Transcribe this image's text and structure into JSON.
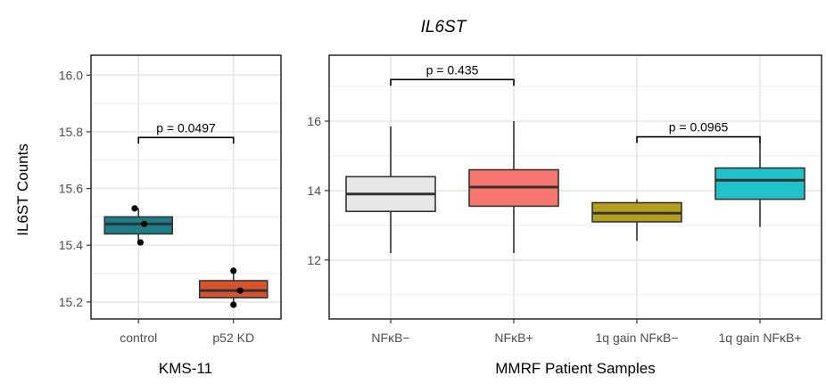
{
  "title": "IL6ST",
  "colors": {
    "control": "#1a7f8a",
    "p52kd": "#d9542b",
    "nfkb_minus": "#e8e8e8",
    "nfkb_plus": "#f8766d",
    "gain_minus": "#b5a01b",
    "gain_plus": "#1fc2c8",
    "grid": "#e6e6e6",
    "frame": "#333333",
    "box_stroke": "#333333"
  },
  "chart_data": [
    {
      "type": "box",
      "xlabel": "KMS-11",
      "ylabel": "IL6ST Counts",
      "ylim": [
        15.14,
        16.07
      ],
      "yticks": [
        "15.2",
        "15.4",
        "15.6",
        "15.8",
        "16.0"
      ],
      "ytick_values": [
        15.2,
        15.4,
        15.6,
        15.8,
        16.0
      ],
      "categories": [
        "control",
        "p52 KD"
      ],
      "boxes": [
        {
          "name": "control",
          "q1": 15.44,
          "median": 15.475,
          "q3": 15.5,
          "whisker_low": 15.41,
          "whisker_high": 15.53,
          "color_key": "control"
        },
        {
          "name": "p52 KD",
          "q1": 15.215,
          "median": 15.24,
          "q3": 15.275,
          "whisker_low": 15.19,
          "whisker_high": 15.31,
          "color_key": "p52kd"
        }
      ],
      "points": [
        {
          "category": "control",
          "offset": -0.04,
          "y": 15.53
        },
        {
          "category": "control",
          "offset": 0.06,
          "y": 15.475
        },
        {
          "category": "control",
          "offset": 0.02,
          "y": 15.41
        },
        {
          "category": "p52 KD",
          "offset": 0.0,
          "y": 15.31
        },
        {
          "category": "p52 KD",
          "offset": 0.07,
          "y": 15.24
        },
        {
          "category": "p52 KD",
          "offset": 0.0,
          "y": 15.19
        }
      ],
      "annotations": [
        {
          "label": "p = 0.0497",
          "from": "control",
          "to": "p52 KD",
          "y": 15.78
        }
      ]
    },
    {
      "type": "box",
      "xlabel": "MMRF Patient Samples",
      "ylabel": "",
      "ylim": [
        10.3,
        17.9
      ],
      "yticks": [
        "12",
        "14",
        "16"
      ],
      "ytick_values": [
        12,
        14,
        16
      ],
      "categories": [
        "NFκB−",
        "NFκB+",
        "1q gain NFκB−",
        "1q gain NFκB+"
      ],
      "boxes": [
        {
          "name": "NFκB−",
          "q1": 13.4,
          "median": 13.9,
          "q3": 14.4,
          "whisker_low": 12.2,
          "whisker_high": 15.85,
          "color_key": "nfkb_minus"
        },
        {
          "name": "NFκB+",
          "q1": 13.55,
          "median": 14.1,
          "q3": 14.6,
          "whisker_low": 12.2,
          "whisker_high": 16.0,
          "color_key": "nfkb_plus"
        },
        {
          "name": "1q gain NFκB−",
          "q1": 13.1,
          "median": 13.35,
          "q3": 13.65,
          "whisker_low": 12.55,
          "whisker_high": 13.75,
          "color_key": "gain_minus"
        },
        {
          "name": "1q gain NFκB+",
          "q1": 13.75,
          "median": 14.3,
          "q3": 14.65,
          "whisker_low": 12.95,
          "whisker_high": 15.4,
          "color_key": "gain_plus"
        }
      ],
      "points": [],
      "annotations": [
        {
          "label": "p = 0.435",
          "from": "NFκB−",
          "to": "NFκB+",
          "y": 17.2
        },
        {
          "label": "p = 0.0965",
          "from": "1q gain NFκB−",
          "to": "1q gain NFκB+",
          "y": 15.55
        }
      ]
    }
  ]
}
